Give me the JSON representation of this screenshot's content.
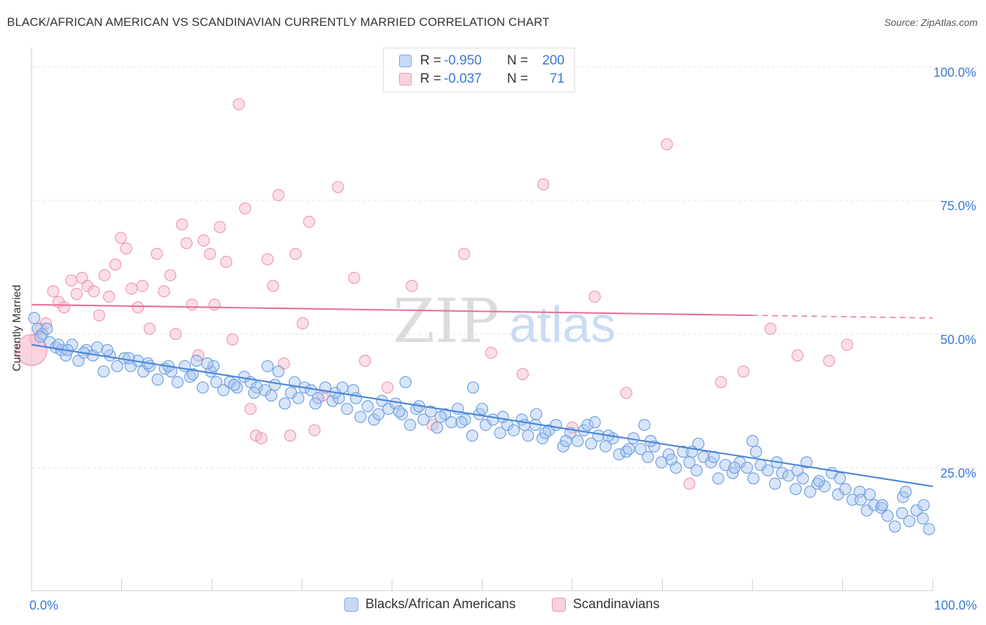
{
  "header": {
    "title": "BLACK/AFRICAN AMERICAN VS SCANDINAVIAN CURRENTLY MARRIED CORRELATION CHART",
    "source": "Source: ZipAtlas.com"
  },
  "watermark": {
    "zip": "ZIP",
    "atlas": "atlas"
  },
  "legend_top": [
    {
      "r_label": "R =",
      "r_value": "-0.950",
      "n_label": "N =",
      "n_value": "200",
      "color": "#a9c6f0"
    },
    {
      "r_label": "R =",
      "r_value": "-0.037",
      "n_label": "N =",
      "n_value": "71",
      "color": "#f5b8cb"
    }
  ],
  "legend_bottom": [
    {
      "label": "Blacks/African Americans",
      "color": "#a9c6f0"
    },
    {
      "label": "Scandinavians",
      "color": "#f5b8cb"
    }
  ],
  "chart_data": {
    "type": "scatter",
    "title": "BLACK/AFRICAN AMERICAN VS SCANDINAVIAN CURRENTLY MARRIED CORRELATION CHART",
    "xlabel": "",
    "ylabel": "Currently Married",
    "x_tick_labels": [
      "0.0%",
      "100.0%"
    ],
    "y_tick_labels": [
      "25.0%",
      "50.0%",
      "75.0%",
      "100.0%"
    ],
    "xlim": [
      0,
      100
    ],
    "ylim": [
      2,
      102
    ],
    "grid": true,
    "colors": {
      "blue": "#4a86d8",
      "blue_fill": "#a9c6f0",
      "pink": "#e8739a",
      "pink_fill": "#f5b8cb",
      "tick_text": "#3a78d8"
    },
    "series": [
      {
        "name": "Blacks/African Americans",
        "r": -0.95,
        "n": 200,
        "trend": {
          "x0": 0,
          "y0": 48.0,
          "x1": 100,
          "y1": 21.5
        },
        "points": [
          [
            0.3,
            53
          ],
          [
            0.7,
            51
          ],
          [
            1.2,
            50
          ],
          [
            1.7,
            51
          ],
          [
            2.0,
            48.5
          ],
          [
            2.7,
            47.5
          ],
          [
            3.3,
            47
          ],
          [
            3.8,
            46
          ],
          [
            4.5,
            48
          ],
          [
            5.2,
            45
          ],
          [
            6.1,
            47
          ],
          [
            6.8,
            46
          ],
          [
            7.3,
            47.5
          ],
          [
            8.0,
            43
          ],
          [
            8.7,
            46
          ],
          [
            9.5,
            44
          ],
          [
            10.3,
            45.5
          ],
          [
            11.0,
            44
          ],
          [
            11.8,
            45
          ],
          [
            12.4,
            43
          ],
          [
            13.1,
            44
          ],
          [
            14.0,
            41.5
          ],
          [
            14.8,
            43.5
          ],
          [
            15.5,
            43
          ],
          [
            16.2,
            41
          ],
          [
            17.0,
            44
          ],
          [
            17.6,
            42
          ],
          [
            18.3,
            45
          ],
          [
            19.0,
            40
          ],
          [
            19.9,
            43
          ],
          [
            20.5,
            41
          ],
          [
            21.3,
            39.5
          ],
          [
            22.0,
            41
          ],
          [
            22.8,
            40
          ],
          [
            23.6,
            42
          ],
          [
            24.3,
            41
          ],
          [
            25.0,
            40
          ],
          [
            25.9,
            39.5
          ],
          [
            26.6,
            38.5
          ],
          [
            27.4,
            43
          ],
          [
            28.1,
            37
          ],
          [
            28.8,
            39
          ],
          [
            29.6,
            38
          ],
          [
            30.3,
            40
          ],
          [
            31.0,
            39.5
          ],
          [
            31.8,
            38
          ],
          [
            32.6,
            40
          ],
          [
            33.4,
            37.5
          ],
          [
            34.1,
            38
          ],
          [
            35.0,
            36
          ],
          [
            35.7,
            39.5
          ],
          [
            36.5,
            34.5
          ],
          [
            37.3,
            36.5
          ],
          [
            38.0,
            34
          ],
          [
            38.9,
            37.5
          ],
          [
            39.6,
            36
          ],
          [
            40.4,
            37
          ],
          [
            41.1,
            35
          ],
          [
            42.0,
            33
          ],
          [
            42.7,
            36
          ],
          [
            43.5,
            34
          ],
          [
            44.3,
            35.5
          ],
          [
            45.0,
            32.5
          ],
          [
            45.9,
            35
          ],
          [
            46.6,
            33.5
          ],
          [
            47.3,
            36
          ],
          [
            48.1,
            34
          ],
          [
            48.9,
            31
          ],
          [
            49.7,
            35
          ],
          [
            50.4,
            33
          ],
          [
            51.2,
            34
          ],
          [
            52.0,
            31.5
          ],
          [
            52.8,
            33
          ],
          [
            53.5,
            32
          ],
          [
            54.4,
            34
          ],
          [
            55.1,
            31
          ],
          [
            55.9,
            33
          ],
          [
            56.7,
            30.5
          ],
          [
            57.4,
            32
          ],
          [
            58.2,
            33
          ],
          [
            59.0,
            29
          ],
          [
            59.8,
            31.5
          ],
          [
            60.6,
            30
          ],
          [
            61.3,
            32
          ],
          [
            62.1,
            29.5
          ],
          [
            62.9,
            31
          ],
          [
            63.7,
            29
          ],
          [
            64.5,
            30.5
          ],
          [
            65.2,
            27.5
          ],
          [
            66.0,
            28
          ],
          [
            66.8,
            30.5
          ],
          [
            67.6,
            28.5
          ],
          [
            68.4,
            27
          ],
          [
            69.1,
            29
          ],
          [
            69.9,
            26
          ],
          [
            70.7,
            27.5
          ],
          [
            71.5,
            25
          ],
          [
            72.3,
            28
          ],
          [
            73.0,
            26
          ],
          [
            73.8,
            24.5
          ],
          [
            74.6,
            27
          ],
          [
            75.4,
            26
          ],
          [
            76.2,
            23
          ],
          [
            77.0,
            25.5
          ],
          [
            77.8,
            24
          ],
          [
            78.6,
            26
          ],
          [
            79.4,
            25
          ],
          [
            80.1,
            23
          ],
          [
            80.9,
            25.5
          ],
          [
            81.7,
            24.5
          ],
          [
            82.5,
            22
          ],
          [
            83.3,
            24
          ],
          [
            84.0,
            23.5
          ],
          [
            84.8,
            21
          ],
          [
            85.6,
            23
          ],
          [
            86.4,
            20.5
          ],
          [
            87.2,
            22
          ],
          [
            88.0,
            21.5
          ],
          [
            88.8,
            24
          ],
          [
            89.5,
            20
          ],
          [
            90.3,
            21
          ],
          [
            91.1,
            19
          ],
          [
            91.9,
            20.5
          ],
          [
            92.7,
            17
          ],
          [
            93.5,
            18
          ],
          [
            94.3,
            17.5
          ],
          [
            95.0,
            16
          ],
          [
            95.8,
            14
          ],
          [
            96.6,
            16.5
          ],
          [
            97.4,
            15
          ],
          [
            98.2,
            17
          ],
          [
            98.9,
            15.5
          ],
          [
            99.6,
            13.5
          ],
          [
            1.0,
            49.5
          ],
          [
            3.0,
            48
          ],
          [
            5.8,
            46.5
          ],
          [
            8.4,
            47
          ],
          [
            10.8,
            45.5
          ],
          [
            12.9,
            44.5
          ],
          [
            15.2,
            44
          ],
          [
            17.9,
            42.5
          ],
          [
            20.2,
            44
          ],
          [
            22.5,
            40.5
          ],
          [
            24.7,
            39
          ],
          [
            27.0,
            40.5
          ],
          [
            29.2,
            41
          ],
          [
            31.5,
            37
          ],
          [
            33.7,
            39
          ],
          [
            36.0,
            38
          ],
          [
            38.5,
            35
          ],
          [
            40.8,
            35.5
          ],
          [
            43.0,
            36.5
          ],
          [
            45.4,
            34.5
          ],
          [
            47.7,
            33.5
          ],
          [
            50.0,
            36
          ],
          [
            52.3,
            34.5
          ],
          [
            54.7,
            33
          ],
          [
            57.0,
            31.5
          ],
          [
            59.3,
            30
          ],
          [
            61.7,
            33
          ],
          [
            64.0,
            31
          ],
          [
            66.3,
            28.5
          ],
          [
            68.7,
            30
          ],
          [
            71.0,
            26.5
          ],
          [
            73.3,
            28
          ],
          [
            75.7,
            27
          ],
          [
            78.0,
            25
          ],
          [
            80.4,
            28
          ],
          [
            82.7,
            26
          ],
          [
            85.0,
            24.5
          ],
          [
            87.4,
            22.5
          ],
          [
            89.7,
            23
          ],
          [
            92.0,
            19
          ],
          [
            94.4,
            18
          ],
          [
            96.7,
            19.5
          ],
          [
            99.0,
            18
          ],
          [
            19.5,
            44.5
          ],
          [
            34.5,
            40
          ],
          [
            49.0,
            40
          ],
          [
            62.5,
            33.5
          ],
          [
            74.0,
            29.5
          ],
          [
            86.0,
            26
          ],
          [
            93.0,
            20
          ],
          [
            97.0,
            20.5
          ],
          [
            4.0,
            47
          ],
          [
            26.2,
            44
          ],
          [
            41.5,
            41
          ],
          [
            56.0,
            35
          ],
          [
            68.0,
            33
          ],
          [
            80.0,
            30
          ]
        ]
      },
      {
        "name": "Scandinavians",
        "r": -0.037,
        "n": 71,
        "trend": {
          "x0": 0,
          "y0": 55.5,
          "x1": 80,
          "y1": 53.5,
          "x_dash_end": 100,
          "y_dash_end": 53.0
        },
        "points": [
          [
            0.4,
            49
          ],
          [
            1.0,
            51
          ],
          [
            1.6,
            52
          ],
          [
            2.4,
            58
          ],
          [
            3.0,
            56
          ],
          [
            3.6,
            55
          ],
          [
            4.4,
            60
          ],
          [
            5.0,
            57.5
          ],
          [
            5.6,
            60.5
          ],
          [
            6.2,
            59
          ],
          [
            6.9,
            58
          ],
          [
            7.5,
            53.5
          ],
          [
            8.1,
            61
          ],
          [
            8.6,
            57
          ],
          [
            9.3,
            63
          ],
          [
            9.9,
            68
          ],
          [
            10.5,
            66
          ],
          [
            11.1,
            58.5
          ],
          [
            11.8,
            55
          ],
          [
            12.3,
            59
          ],
          [
            13.1,
            51
          ],
          [
            13.9,
            65
          ],
          [
            14.7,
            58
          ],
          [
            15.4,
            61
          ],
          [
            16.0,
            50
          ],
          [
            16.7,
            70.5
          ],
          [
            17.2,
            67
          ],
          [
            17.8,
            55.5
          ],
          [
            18.5,
            46
          ],
          [
            19.1,
            67.5
          ],
          [
            19.8,
            65
          ],
          [
            20.3,
            55.5
          ],
          [
            20.9,
            70
          ],
          [
            21.6,
            63.5
          ],
          [
            22.3,
            49
          ],
          [
            23.0,
            93
          ],
          [
            23.7,
            73.5
          ],
          [
            24.3,
            36
          ],
          [
            24.9,
            31
          ],
          [
            25.5,
            30.5
          ],
          [
            26.2,
            64
          ],
          [
            26.8,
            59
          ],
          [
            27.4,
            76
          ],
          [
            28.0,
            44.5
          ],
          [
            28.7,
            31
          ],
          [
            29.3,
            65
          ],
          [
            30.1,
            52
          ],
          [
            30.8,
            71
          ],
          [
            31.4,
            32
          ],
          [
            32.3,
            38.5
          ],
          [
            34.0,
            77.5
          ],
          [
            35.8,
            60.5
          ],
          [
            37.0,
            45
          ],
          [
            39.5,
            40
          ],
          [
            42.2,
            59
          ],
          [
            44.5,
            33
          ],
          [
            48.0,
            65
          ],
          [
            51.0,
            46.5
          ],
          [
            54.5,
            42.5
          ],
          [
            56.8,
            78
          ],
          [
            60.0,
            32.5
          ],
          [
            62.5,
            57
          ],
          [
            66.0,
            39
          ],
          [
            70.5,
            85.5
          ],
          [
            73.0,
            22
          ],
          [
            76.5,
            41
          ],
          [
            79.0,
            43
          ],
          [
            82.0,
            51
          ],
          [
            85.0,
            46
          ],
          [
            88.5,
            45
          ],
          [
            90.5,
            48
          ]
        ]
      }
    ]
  }
}
